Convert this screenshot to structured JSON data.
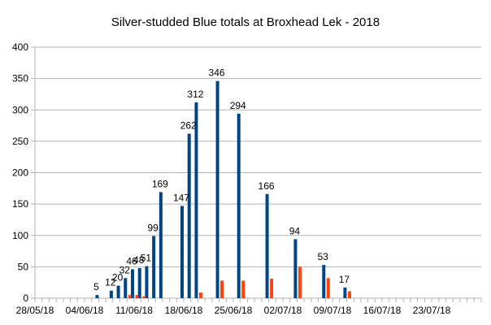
{
  "chart_data": {
    "type": "bar",
    "title": "Silver-studded Blue totals at Broxhead Lek - 2018",
    "xlabel": "",
    "ylabel": "",
    "ylim": [
      0,
      400
    ],
    "y_ticks": [
      "0",
      "50",
      "100",
      "150",
      "200",
      "250",
      "300",
      "350",
      "400"
    ],
    "x_range": [
      "2018-05-28",
      "2018-07-30"
    ],
    "x_tick_dates": [
      "2018-05-28",
      "2018-06-04",
      "2018-06-11",
      "2018-06-18",
      "2018-06-25",
      "2018-07-02",
      "2018-07-09",
      "2018-07-16",
      "2018-07-23"
    ],
    "x_tick_labels": [
      "28/05/18",
      "04/06/18",
      "11/06/18",
      "18/06/18",
      "25/06/18",
      "02/07/18",
      "09/07/18",
      "16/07/18",
      "23/07/18"
    ],
    "grid": "horizontal",
    "legend": "none",
    "colors": {
      "series1": "#004586",
      "series2": "#ff420e",
      "grid": "#b3b3b3"
    },
    "series": [
      {
        "data_labels": true,
        "points": [
          {
            "x": "2018-06-06",
            "y": 5
          },
          {
            "x": "2018-06-08",
            "y": 12
          },
          {
            "x": "2018-06-09",
            "y": 20
          },
          {
            "x": "2018-06-10",
            "y": 32
          },
          {
            "x": "2018-06-11",
            "y": 46
          },
          {
            "x": "2018-06-12",
            "y": 48
          },
          {
            "x": "2018-06-13",
            "y": 51
          },
          {
            "x": "2018-06-14",
            "y": 99
          },
          {
            "x": "2018-06-15",
            "y": 169
          },
          {
            "x": "2018-06-18",
            "y": 147
          },
          {
            "x": "2018-06-19",
            "y": 262
          },
          {
            "x": "2018-06-20",
            "y": 312
          },
          {
            "x": "2018-06-23",
            "y": 346
          },
          {
            "x": "2018-06-26",
            "y": 294
          },
          {
            "x": "2018-06-30",
            "y": 166
          },
          {
            "x": "2018-07-04",
            "y": 94
          },
          {
            "x": "2018-07-08",
            "y": 53
          },
          {
            "x": "2018-07-11",
            "y": 17
          }
        ]
      },
      {
        "data_labels": false,
        "points": [
          {
            "x": "2018-06-10",
            "y": 5
          },
          {
            "x": "2018-06-11",
            "y": 5
          },
          {
            "x": "2018-06-12",
            "y": 3
          },
          {
            "x": "2018-06-20",
            "y": 9
          },
          {
            "x": "2018-06-23",
            "y": 28
          },
          {
            "x": "2018-06-26",
            "y": 28
          },
          {
            "x": "2018-06-30",
            "y": 31
          },
          {
            "x": "2018-07-04",
            "y": 50
          },
          {
            "x": "2018-07-08",
            "y": 32
          },
          {
            "x": "2018-07-11",
            "y": 11
          }
        ]
      }
    ]
  }
}
